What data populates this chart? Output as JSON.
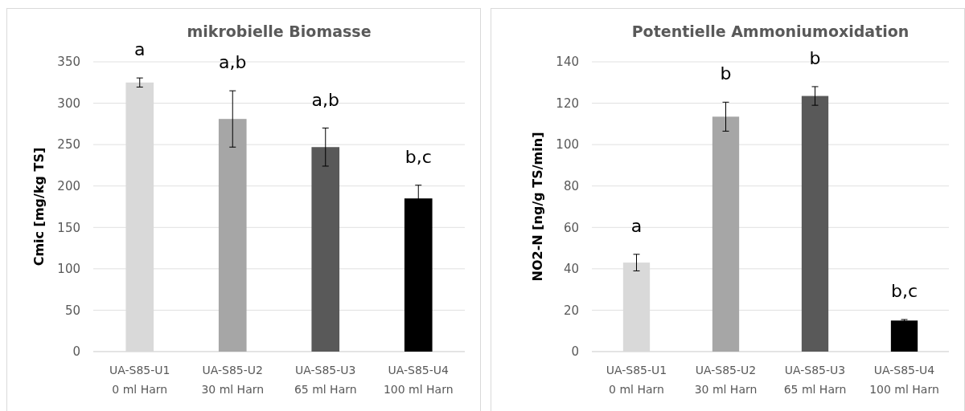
{
  "chart_data": [
    {
      "type": "bar",
      "title": "mikrobielle Biomasse",
      "ylabel": "Cmic [mg/kg TS]",
      "categories": [
        "UA-S85-U1\n0 ml Harn",
        "UA-S85-U2\n30 ml Harn",
        "UA-S85-U3\n65 ml Harn",
        "UA-S85-U4\n100 ml Harn"
      ],
      "values": [
        325,
        281,
        247,
        185
      ],
      "colors": [
        "#d9d9d9",
        "#a6a6a6",
        "#595959",
        "#000000"
      ],
      "errors": [
        5.5,
        34,
        23,
        16
      ],
      "ylim": [
        0,
        350
      ],
      "yticks": [
        0,
        50,
        100,
        150,
        200,
        250,
        300,
        350
      ],
      "grid": "y",
      "annotations": [
        "a",
        "a,b",
        "a,b",
        "b,c"
      ]
    },
    {
      "type": "bar",
      "title": "Potentielle Ammoniumoxidation",
      "ylabel": "NO2-N [ng/g TS/min]",
      "categories": [
        "UA-S85-U1\n0 ml Harn",
        "UA-S85-U2\n30 ml Harn",
        "UA-S85-U3\n65 ml Harn",
        "UA-S85-U4\n100 ml Harn"
      ],
      "values": [
        43,
        113.5,
        123.5,
        15
      ],
      "colors": [
        "#d9d9d9",
        "#a6a6a6",
        "#595959",
        "#000000"
      ],
      "errors": [
        4,
        7,
        4.5,
        0.5
      ],
      "ylim": [
        0,
        140
      ],
      "yticks": [
        0,
        20,
        40,
        60,
        80,
        100,
        120,
        140
      ],
      "grid": "y",
      "annotations": [
        "a",
        "b",
        "b",
        "b,c"
      ]
    }
  ]
}
